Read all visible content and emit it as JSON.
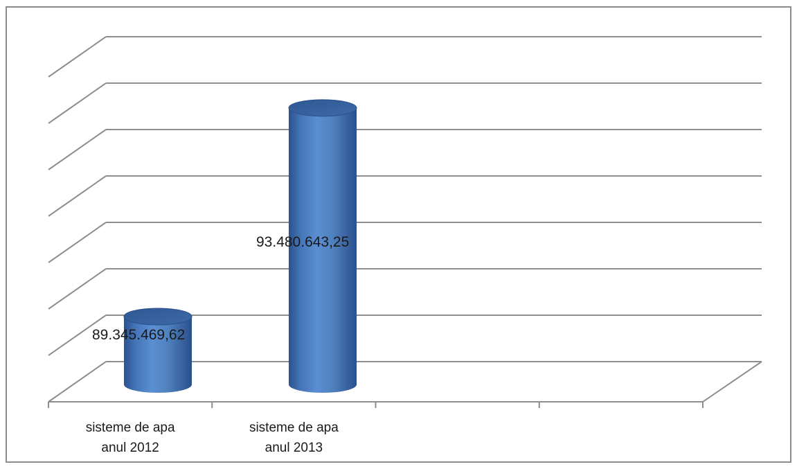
{
  "chart_data": {
    "type": "bar",
    "style": "3d-cylinder",
    "title": "",
    "xlabel": "",
    "ylabel": "",
    "categories": [
      "sisteme de apa anul 2012",
      "sisteme de apa anul 2013"
    ],
    "category_label_lines": [
      [
        "sisteme de apa",
        "anul 2012"
      ],
      [
        "sisteme de apa",
        "anul 2013"
      ]
    ],
    "values": [
      89345469.62,
      93480643.25
    ],
    "data_labels": [
      "89.345.469,62",
      "93.480.643,25"
    ],
    "ylim": [
      88000000,
      94000000
    ],
    "y_gridline_count": 8,
    "x_slots": 4,
    "grid": true,
    "legend": "none",
    "colors": {
      "bar": "#4f81bd",
      "bar_dark": "#2c5290",
      "bar_light": "#7aa6dc",
      "gridline": "#8e8e8e",
      "frame": "#8c8c8c"
    }
  }
}
